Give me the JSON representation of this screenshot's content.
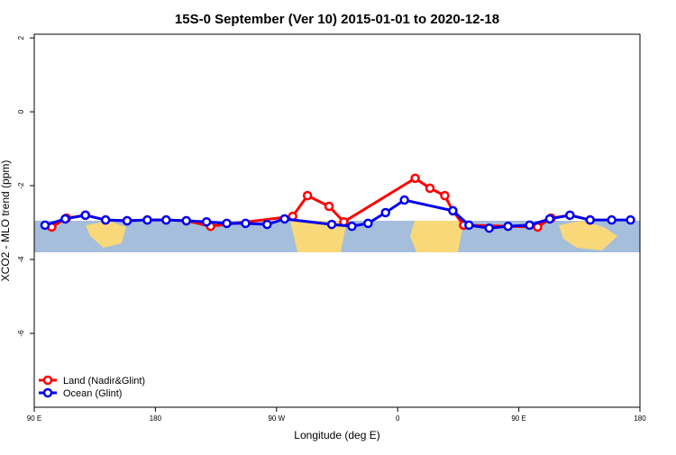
{
  "chart_data": {
    "type": "line",
    "title": "15S-0 September (Ver 10)   2015-01-01 to 2020-12-18",
    "x_label": "Longitude (deg E)",
    "y_label": "XCO2 - MLO trend (ppm)",
    "xlim": [
      90,
      540
    ],
    "ylim": [
      -8,
      2.1
    ],
    "xticks": [
      {
        "value": 90,
        "label": "90 E"
      },
      180,
      {
        "value": 270,
        "label": "90 W"
      },
      {
        "value": 360,
        "label": "0"
      },
      {
        "value": 450,
        "label": "90 E"
      },
      {
        "value": 540,
        "label": "180"
      }
    ],
    "yticks": [
      2,
      0,
      -2,
      -4,
      -6
    ],
    "legend": "bottom-left",
    "series": [
      {
        "name": "Land (Nadir&Glint)",
        "color": "#ff0000",
        "x": [
          103,
          114,
          128,
          143,
          159,
          174,
          188,
          203,
          221,
          282,
          293,
          309,
          320,
          373,
          384,
          395,
          401,
          409,
          464,
          474,
          488,
          503
        ],
        "values": [
          -3.12,
          -2.88,
          -2.8,
          -2.93,
          -2.95,
          -2.93,
          -2.93,
          -2.95,
          -3.1,
          -2.83,
          -2.27,
          -2.56,
          -2.98,
          -1.8,
          -2.07,
          -2.27,
          -2.68,
          -3.07,
          -3.12,
          -2.88,
          -2.8,
          -2.93
        ]
      },
      {
        "name": "Ocean (Glint)",
        "color": "#0000ee",
        "x": [
          98,
          113,
          128,
          143,
          159,
          174,
          188,
          203,
          218,
          233,
          247,
          263,
          276,
          311,
          326,
          338,
          351,
          365,
          401,
          413,
          428,
          442,
          458,
          473,
          488,
          503,
          519,
          533
        ],
        "values": [
          -3.07,
          -2.9,
          -2.8,
          -2.93,
          -2.95,
          -2.93,
          -2.93,
          -2.95,
          -2.98,
          -3.02,
          -3.02,
          -3.05,
          -2.9,
          -3.05,
          -3.1,
          -3.02,
          -2.73,
          -2.39,
          -2.68,
          -3.07,
          -3.15,
          -3.1,
          -3.07,
          -2.9,
          -2.8,
          -2.93,
          -2.93,
          -2.93
        ]
      }
    ]
  }
}
